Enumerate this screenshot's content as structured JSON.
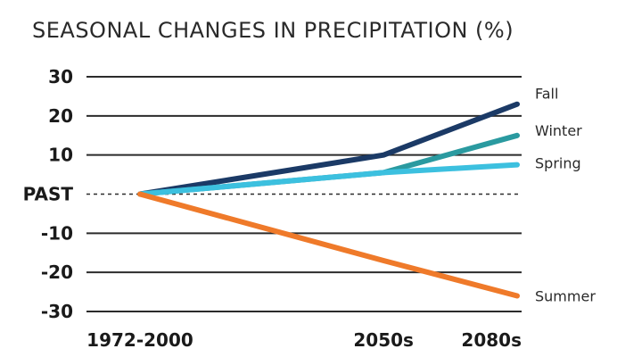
{
  "chart_data": {
    "type": "line",
    "title": "SEASONAL CHANGES IN PRECIPITATION (%)",
    "xlabel": "",
    "ylabel": "",
    "categories": [
      "1972-2000",
      "2050s",
      "2080s"
    ],
    "x": [
      0,
      1.55,
      2.4
    ],
    "yticks": [
      {
        "value": 30,
        "label": "30"
      },
      {
        "value": 20,
        "label": "20"
      },
      {
        "value": 10,
        "label": "10"
      },
      {
        "value": 0,
        "label": "PAST"
      },
      {
        "value": -10,
        "label": "-10"
      },
      {
        "value": -20,
        "label": "-20"
      },
      {
        "value": -30,
        "label": "-30"
      }
    ],
    "ylim": [
      -30,
      30
    ],
    "grid": true,
    "legend": "inline-right",
    "series": [
      {
        "name": "Fall",
        "color": "#1b3a66",
        "values": [
          0,
          10,
          23
        ]
      },
      {
        "name": "Winter",
        "color": "#2a9aa0",
        "values": [
          0,
          5.5,
          15
        ]
      },
      {
        "name": "Spring",
        "color": "#3cc0df",
        "values": [
          0,
          5.5,
          7.5
        ]
      },
      {
        "name": "Summer",
        "color": "#ef7a2a",
        "values": [
          0,
          -17,
          -26
        ]
      }
    ]
  }
}
